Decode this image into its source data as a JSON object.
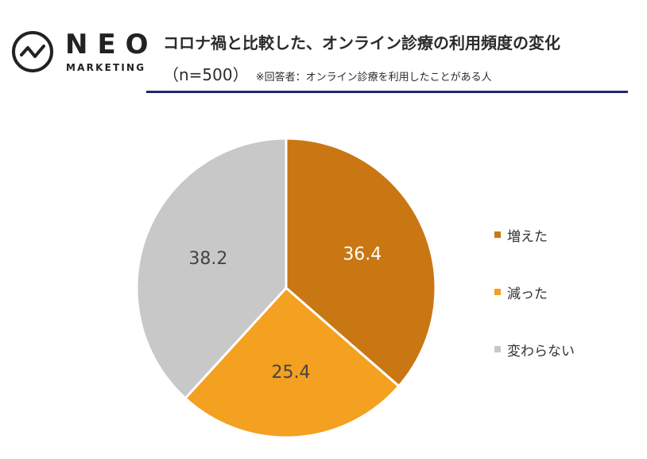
{
  "logo": {
    "wordmark": "NEO",
    "tagline": "MARKETING"
  },
  "header": {
    "title": "コロナ禍と比較した、オンライン診療の利用頻度の変化",
    "sample": "（n=500）",
    "note": "※回答者：オンライン診療を利用したことがある人"
  },
  "colors": {
    "rule": "#1f2a6b"
  },
  "chart_data": {
    "type": "pie",
    "start": "12 o'clock, clockwise",
    "slices": [
      {
        "label": "増えた",
        "value": 36.4,
        "color": "#c97713"
      },
      {
        "label": "減った",
        "value": 25.4,
        "color": "#f4a020"
      },
      {
        "label": "変わらない",
        "value": 38.2,
        "color": "#c8c8c8"
      }
    ],
    "legend": "right"
  }
}
